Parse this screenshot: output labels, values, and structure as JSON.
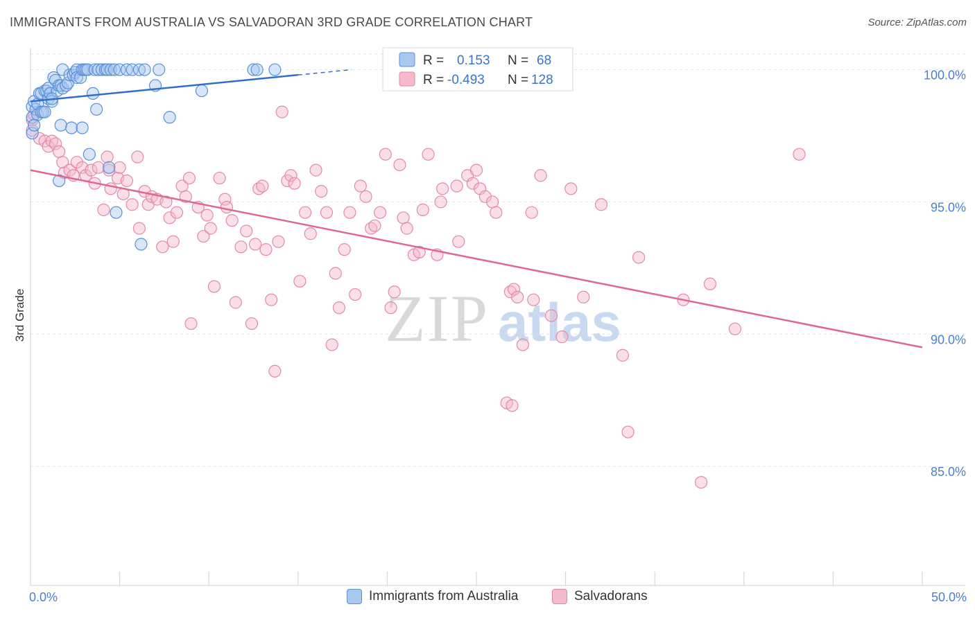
{
  "title": "IMMIGRANTS FROM AUSTRALIA VS SALVADORAN 3RD GRADE CORRELATION CHART",
  "source": "Source: ZipAtlas.com",
  "watermark": {
    "zip": "ZIP",
    "atlas": "atlas"
  },
  "colors": {
    "blue_fill": "#a8c8f0",
    "blue_stroke": "#5b8fd6",
    "blue_line": "#2f6fc9",
    "pink_fill": "#f5b8cc",
    "pink_stroke": "#e389a8",
    "pink_line": "#e0688f",
    "axis_label": "#4a7fd0",
    "grid": "#dde3ea"
  },
  "chart_data": {
    "type": "scatter",
    "title": "IMMIGRANTS FROM AUSTRALIA VS SALVADORAN 3RD GRADE CORRELATION CHART",
    "xlabel": "",
    "ylabel": "3rd Grade",
    "xlim": [
      0,
      50
    ],
    "ylim": [
      80.5,
      100.8
    ],
    "x_ticks": [
      "0.0%",
      "50.0%"
    ],
    "y_ticks": [
      {
        "value": 100,
        "label": "100.0%"
      },
      {
        "value": 95,
        "label": "95.0%"
      },
      {
        "value": 90,
        "label": "90.0%"
      },
      {
        "value": 85,
        "label": "85.0%"
      }
    ],
    "grid": true,
    "legend": {
      "placement": "top-center",
      "rows": [
        {
          "r_label": "R = ",
          "r_value": "0.153",
          "n_label": "N = ",
          "n_value": "68"
        },
        {
          "r_label": "R = ",
          "r_value": "-0.493",
          "n_label": "N = ",
          "n_value": "128"
        }
      ]
    },
    "series": [
      {
        "name": "Immigrants from Australia",
        "color": "#a8c8f0",
        "trend": {
          "x0": 0,
          "y0": 98.8,
          "x1": 15,
          "y1": 99.8,
          "dash_to": 18,
          "dash_y": 100.0
        },
        "points": [
          [
            0.1,
            98.6
          ],
          [
            0.1,
            98.2
          ],
          [
            0.1,
            97.6
          ],
          [
            0.2,
            98.8
          ],
          [
            0.3,
            98.5
          ],
          [
            0.4,
            98.7
          ],
          [
            0.4,
            98.3
          ],
          [
            0.5,
            99.1
          ],
          [
            0.6,
            99.1
          ],
          [
            0.6,
            98.4
          ],
          [
            0.7,
            98.4
          ],
          [
            0.8,
            99.2
          ],
          [
            0.8,
            98.4
          ],
          [
            0.9,
            99.2
          ],
          [
            1.0,
            99.3
          ],
          [
            1.0,
            98.9
          ],
          [
            1.1,
            99.1
          ],
          [
            1.2,
            98.8
          ],
          [
            1.3,
            99.7
          ],
          [
            1.4,
            99.6
          ],
          [
            1.5,
            99.2
          ],
          [
            1.6,
            99.4
          ],
          [
            1.7,
            99.4
          ],
          [
            1.8,
            99.3
          ],
          [
            1.8,
            100.0
          ],
          [
            2.0,
            99.4
          ],
          [
            2.1,
            99.5
          ],
          [
            2.2,
            99.8
          ],
          [
            2.4,
            99.8
          ],
          [
            2.5,
            99.9
          ],
          [
            2.6,
            100.0
          ],
          [
            2.6,
            99.7
          ],
          [
            2.8,
            99.7
          ],
          [
            2.9,
            100.0
          ],
          [
            3.0,
            100.0
          ],
          [
            3.1,
            100.0
          ],
          [
            3.2,
            100.0
          ],
          [
            3.5,
            99.1
          ],
          [
            3.6,
            100.0
          ],
          [
            3.8,
            100.0
          ],
          [
            4.0,
            100.0
          ],
          [
            4.2,
            100.0
          ],
          [
            4.3,
            100.0
          ],
          [
            4.5,
            100.0
          ],
          [
            4.7,
            100.0
          ],
          [
            5.0,
            100.0
          ],
          [
            5.4,
            100.0
          ],
          [
            5.7,
            100.0
          ],
          [
            6.1,
            100.0
          ],
          [
            6.4,
            100.0
          ],
          [
            7.0,
            99.4
          ],
          [
            7.2,
            100.0
          ],
          [
            7.8,
            98.2
          ],
          [
            9.6,
            99.2
          ],
          [
            12.5,
            100.0
          ],
          [
            12.7,
            100.0
          ],
          [
            13.7,
            100.0
          ],
          [
            1.7,
            97.9
          ],
          [
            2.3,
            97.8
          ],
          [
            2.9,
            97.8
          ],
          [
            3.3,
            96.8
          ],
          [
            3.7,
            98.5
          ],
          [
            4.4,
            96.3
          ],
          [
            4.8,
            94.6
          ],
          [
            6.2,
            93.4
          ],
          [
            1.6,
            95.8
          ],
          [
            0.2,
            97.9
          ],
          [
            1.2,
            98.9
          ]
        ]
      },
      {
        "name": "Salvadorans",
        "color": "#f5b8cc",
        "trend": {
          "x0": 0,
          "y0": 96.2,
          "x1": 50,
          "y1": 89.5
        },
        "points": [
          [
            0.1,
            98.1
          ],
          [
            0.1,
            97.7
          ],
          [
            0.2,
            98.3
          ],
          [
            0.5,
            97.4
          ],
          [
            0.8,
            97.3
          ],
          [
            1.0,
            97.1
          ],
          [
            1.2,
            97.3
          ],
          [
            1.4,
            97.2
          ],
          [
            1.6,
            96.9
          ],
          [
            1.8,
            96.5
          ],
          [
            1.9,
            96.1
          ],
          [
            2.2,
            96.2
          ],
          [
            2.4,
            96.0
          ],
          [
            2.6,
            96.5
          ],
          [
            2.9,
            96.3
          ],
          [
            3.1,
            96.0
          ],
          [
            3.4,
            96.2
          ],
          [
            3.6,
            95.7
          ],
          [
            3.8,
            96.3
          ],
          [
            4.1,
            94.7
          ],
          [
            4.3,
            96.7
          ],
          [
            4.4,
            96.2
          ],
          [
            4.5,
            95.5
          ],
          [
            4.9,
            95.9
          ],
          [
            5.0,
            96.3
          ],
          [
            5.2,
            95.3
          ],
          [
            5.4,
            95.8
          ],
          [
            5.7,
            94.9
          ],
          [
            6.0,
            96.7
          ],
          [
            6.1,
            94.0
          ],
          [
            6.4,
            95.4
          ],
          [
            6.6,
            94.9
          ],
          [
            6.8,
            95.2
          ],
          [
            7.1,
            95.1
          ],
          [
            7.4,
            93.3
          ],
          [
            7.6,
            95.0
          ],
          [
            7.8,
            94.4
          ],
          [
            8.0,
            93.5
          ],
          [
            8.2,
            94.6
          ],
          [
            8.5,
            95.6
          ],
          [
            8.7,
            95.2
          ],
          [
            8.9,
            95.9
          ],
          [
            9.0,
            90.4
          ],
          [
            9.4,
            94.8
          ],
          [
            9.7,
            93.7
          ],
          [
            9.9,
            94.5
          ],
          [
            10.1,
            94.0
          ],
          [
            10.3,
            91.8
          ],
          [
            10.6,
            95.9
          ],
          [
            10.9,
            95.1
          ],
          [
            11.0,
            94.8
          ],
          [
            11.3,
            94.3
          ],
          [
            11.5,
            91.2
          ],
          [
            11.8,
            93.3
          ],
          [
            12.1,
            93.9
          ],
          [
            12.4,
            90.4
          ],
          [
            12.6,
            93.4
          ],
          [
            12.8,
            95.5
          ],
          [
            13.0,
            95.6
          ],
          [
            13.2,
            93.2
          ],
          [
            13.5,
            91.3
          ],
          [
            13.7,
            88.6
          ],
          [
            13.9,
            93.5
          ],
          [
            14.1,
            98.4
          ],
          [
            14.4,
            95.8
          ],
          [
            14.6,
            96.0
          ],
          [
            14.8,
            95.7
          ],
          [
            15.1,
            92.0
          ],
          [
            15.4,
            94.6
          ],
          [
            15.7,
            93.8
          ],
          [
            16.0,
            96.2
          ],
          [
            16.3,
            95.4
          ],
          [
            16.6,
            94.6
          ],
          [
            16.9,
            89.6
          ],
          [
            17.1,
            92.3
          ],
          [
            17.3,
            91.0
          ],
          [
            17.6,
            93.2
          ],
          [
            17.9,
            94.6
          ],
          [
            18.2,
            91.5
          ],
          [
            18.5,
            95.6
          ],
          [
            18.8,
            95.2
          ],
          [
            19.1,
            94.0
          ],
          [
            19.3,
            94.1
          ],
          [
            19.6,
            94.6
          ],
          [
            19.9,
            96.8
          ],
          [
            20.2,
            91.0
          ],
          [
            20.4,
            91.6
          ],
          [
            20.7,
            96.4
          ],
          [
            20.9,
            94.4
          ],
          [
            21.1,
            94.0
          ],
          [
            21.5,
            93.0
          ],
          [
            21.8,
            93.1
          ],
          [
            22.0,
            94.7
          ],
          [
            22.3,
            96.8
          ],
          [
            22.8,
            93.0
          ],
          [
            23.0,
            95.0
          ],
          [
            23.1,
            95.5
          ],
          [
            23.9,
            95.6
          ],
          [
            24.0,
            93.5
          ],
          [
            24.5,
            96.0
          ],
          [
            24.8,
            95.7
          ],
          [
            25.0,
            96.2
          ],
          [
            25.2,
            95.5
          ],
          [
            25.5,
            95.2
          ],
          [
            25.7,
            100.0
          ],
          [
            25.9,
            95.0
          ],
          [
            26.1,
            94.6
          ],
          [
            26.7,
            87.4
          ],
          [
            26.9,
            91.6
          ],
          [
            27.0,
            87.3
          ],
          [
            27.1,
            91.7
          ],
          [
            27.3,
            91.4
          ],
          [
            27.6,
            89.6
          ],
          [
            28.1,
            94.6
          ],
          [
            28.2,
            91.3
          ],
          [
            28.6,
            96.0
          ],
          [
            29.2,
            90.7
          ],
          [
            29.8,
            89.9
          ],
          [
            30.3,
            95.5
          ],
          [
            31.0,
            91.4
          ],
          [
            32.0,
            94.9
          ],
          [
            33.2,
            89.2
          ],
          [
            33.5,
            86.3
          ],
          [
            34.1,
            92.9
          ],
          [
            36.6,
            91.3
          ],
          [
            37.6,
            84.4
          ],
          [
            38.1,
            91.9
          ],
          [
            39.5,
            90.2
          ],
          [
            43.1,
            96.8
          ]
        ]
      }
    ]
  },
  "bottom_legend": [
    {
      "label": "Immigrants from Australia"
    },
    {
      "label": "Salvadorans"
    }
  ]
}
